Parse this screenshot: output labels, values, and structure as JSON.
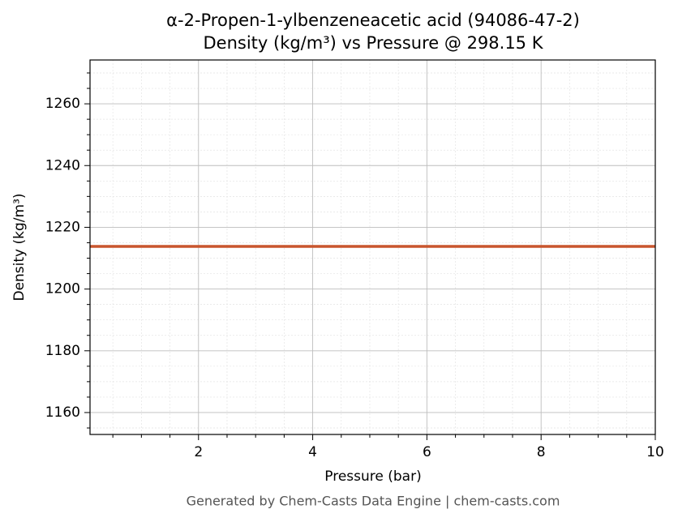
{
  "chart_data": {
    "type": "line",
    "title": "α-2-Propen-1-ylbenzeneacetic acid (94086-47-2)",
    "subtitle": "Density (kg/m³) vs Pressure @ 298.15 K",
    "x_label": "Pressure (bar)",
    "y_label": "Density (kg/m³)",
    "footer": "Generated by Chem-Casts Data Engine | chem-casts.com",
    "x": [
      0.1,
      10
    ],
    "series": [
      {
        "color": "#c8552d",
        "values": [
          1213.8,
          1213.8
        ]
      }
    ],
    "xlim": [
      0.1,
      10
    ],
    "xticks": [
      2,
      4,
      6,
      8,
      10
    ],
    "xminorticks": [
      0.5,
      1,
      1.5,
      2.5,
      3,
      3.5,
      4.5,
      5,
      5.5,
      6.5,
      7,
      7.5,
      8.5,
      9,
      9.5
    ],
    "ylim": [
      1152.9,
      1274.2
    ],
    "yticks": [
      1160,
      1180,
      1200,
      1220,
      1240,
      1260
    ],
    "yminorticks": [
      1155,
      1165,
      1170,
      1175,
      1185,
      1190,
      1195,
      1205,
      1210,
      1215,
      1225,
      1230,
      1235,
      1245,
      1250,
      1255,
      1265,
      1270
    ],
    "grid": true
  }
}
